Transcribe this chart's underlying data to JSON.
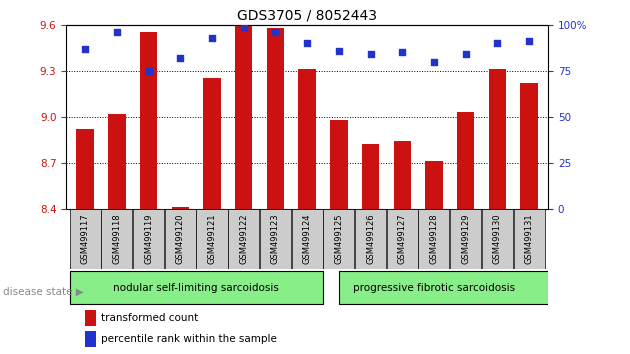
{
  "title": "GDS3705 / 8052443",
  "samples": [
    "GSM499117",
    "GSM499118",
    "GSM499119",
    "GSM499120",
    "GSM499121",
    "GSM499122",
    "GSM499123",
    "GSM499124",
    "GSM499125",
    "GSM499126",
    "GSM499127",
    "GSM499128",
    "GSM499129",
    "GSM499130",
    "GSM499131"
  ],
  "bar_values": [
    8.92,
    9.02,
    9.55,
    8.41,
    9.25,
    9.59,
    9.58,
    9.31,
    8.98,
    8.82,
    8.84,
    8.71,
    9.03,
    9.31,
    9.22
  ],
  "percentile_values": [
    87,
    96,
    75,
    82,
    93,
    99,
    96,
    90,
    86,
    84,
    85,
    80,
    84,
    90,
    91
  ],
  "ylim_left": [
    8.4,
    9.6
  ],
  "ylim_right": [
    0,
    100
  ],
  "yticks_left": [
    8.4,
    8.7,
    9.0,
    9.3,
    9.6
  ],
  "yticks_right": [
    0,
    25,
    50,
    75,
    100
  ],
  "bar_color": "#cc1111",
  "dot_color": "#2233cc",
  "group1_label": "nodular self-limiting sarcoidosis",
  "group2_label": "progressive fibrotic sarcoidosis",
  "group1_count": 8,
  "group2_count": 7,
  "disease_state_label": "disease state",
  "legend_bar_label": "transformed count",
  "legend_dot_label": "percentile rank within the sample",
  "group_bg_color": "#88ee88",
  "tick_bg_color": "#cccccc",
  "base_value": 8.4,
  "right_axis_label": "%"
}
